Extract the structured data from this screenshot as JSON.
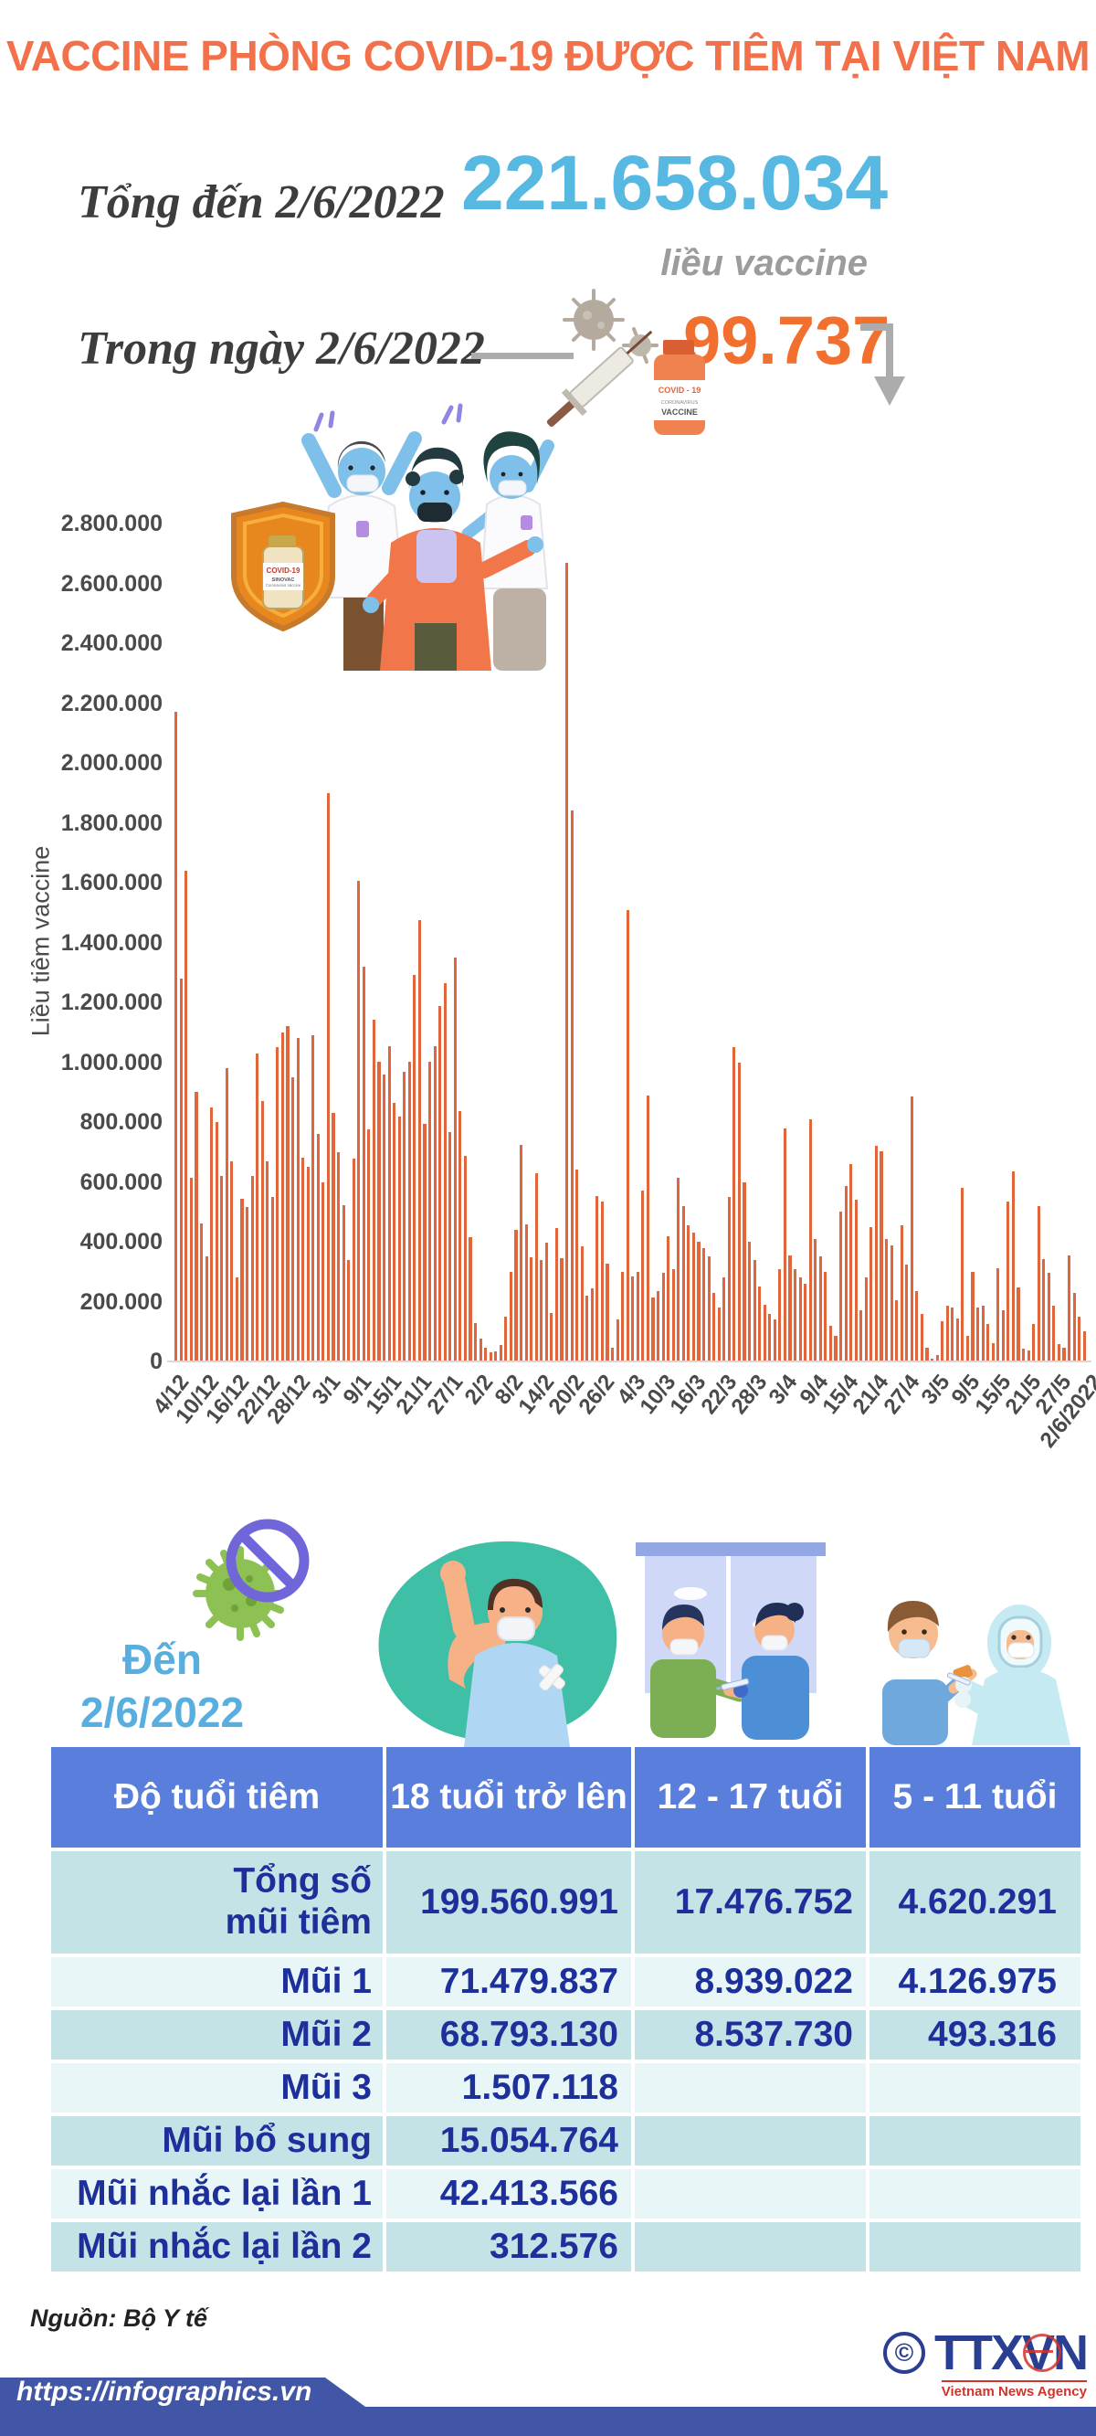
{
  "header": {
    "title": "VACCINE PHÒNG COVID-19 ĐƯỢC TIÊM TẠI VIỆT NAM"
  },
  "summary": {
    "total_label": "Tổng đến 2/6/2022",
    "total_value": "221.658.034",
    "total_unit": "liều vaccine",
    "daily_label": "Trong ngày 2/6/2022",
    "daily_value": "99.737"
  },
  "chart_data": {
    "type": "bar",
    "title": "",
    "ylabel": "Liều tiêm vaccine",
    "xlabel": "",
    "ylim": [
      0,
      2800000
    ],
    "grid": false,
    "legend": "none",
    "bar_color": "#E2663B",
    "y_ticks": [
      {
        "value": 0,
        "label": "0"
      },
      {
        "value": 200000,
        "label": "200.000"
      },
      {
        "value": 400000,
        "label": "400.000"
      },
      {
        "value": 600000,
        "label": "600.000"
      },
      {
        "value": 800000,
        "label": "800.000"
      },
      {
        "value": 1000000,
        "label": "1.000.000"
      },
      {
        "value": 1200000,
        "label": "1.200.000"
      },
      {
        "value": 1400000,
        "label": "1.400.000"
      },
      {
        "value": 1600000,
        "label": "1.600.000"
      },
      {
        "value": 1800000,
        "label": "1.800.000"
      },
      {
        "value": 2000000,
        "label": "2.000.000"
      },
      {
        "value": 2200000,
        "label": "2.200.000"
      },
      {
        "value": 2400000,
        "label": "2.400.000"
      },
      {
        "value": 2600000,
        "label": "2.600.000"
      },
      {
        "value": 2800000,
        "label": "2.800.000"
      }
    ],
    "x_ticks": [
      {
        "i": 0,
        "label": "4/12"
      },
      {
        "i": 6,
        "label": "10/12"
      },
      {
        "i": 12,
        "label": "16/12"
      },
      {
        "i": 18,
        "label": "22/12"
      },
      {
        "i": 24,
        "label": "28/12"
      },
      {
        "i": 30,
        "label": "3/1"
      },
      {
        "i": 36,
        "label": "9/1"
      },
      {
        "i": 42,
        "label": "15/1"
      },
      {
        "i": 48,
        "label": "21/1"
      },
      {
        "i": 54,
        "label": "27/1"
      },
      {
        "i": 60,
        "label": "2/2"
      },
      {
        "i": 66,
        "label": "8/2"
      },
      {
        "i": 72,
        "label": "14/2"
      },
      {
        "i": 78,
        "label": "20/2"
      },
      {
        "i": 84,
        "label": "26/2"
      },
      {
        "i": 90,
        "label": "4/3"
      },
      {
        "i": 96,
        "label": "10/3"
      },
      {
        "i": 102,
        "label": "16/3"
      },
      {
        "i": 108,
        "label": "22/3"
      },
      {
        "i": 114,
        "label": "28/3"
      },
      {
        "i": 120,
        "label": "3/4"
      },
      {
        "i": 126,
        "label": "9/4"
      },
      {
        "i": 132,
        "label": "15/4"
      },
      {
        "i": 138,
        "label": "21/4"
      },
      {
        "i": 144,
        "label": "27/4"
      },
      {
        "i": 150,
        "label": "3/5"
      },
      {
        "i": 156,
        "label": "9/5"
      },
      {
        "i": 162,
        "label": "15/5"
      },
      {
        "i": 168,
        "label": "21/5"
      },
      {
        "i": 174,
        "label": "27/5"
      },
      {
        "i": 180,
        "label": "2/6/2022"
      }
    ],
    "values": [
      2170000,
      1280000,
      1640000,
      613000,
      900000,
      460000,
      350000,
      850000,
      800000,
      620000,
      980000,
      670000,
      280000,
      545000,
      515000,
      620000,
      1030000,
      870000,
      670000,
      550000,
      1050000,
      1100000,
      1120000,
      950000,
      1080000,
      680000,
      650000,
      1090000,
      760000,
      600000,
      1900000,
      830000,
      700000,
      521000,
      338000,
      679000,
      1607000,
      1318000,
      775000,
      1143000,
      1003000,
      959000,
      1055000,
      863000,
      819000,
      968000,
      1003000,
      1291000,
      1475000,
      793000,
      1003000,
      1055000,
      1187000,
      1265000,
      767000,
      1349000,
      837000,
      688000,
      416000,
      128000,
      75000,
      45000,
      30000,
      33000,
      55000,
      150000,
      300000,
      440000,
      725000,
      457000,
      347000,
      630000,
      338000,
      397000,
      162000,
      445000,
      344000,
      2670000,
      1840000,
      641000,
      385000,
      219000,
      243000,
      552000,
      534000,
      326000,
      46000,
      142000,
      300000,
      1510000,
      285000,
      300000,
      570000,
      890000,
      215000,
      235000,
      295000,
      420000,
      310000,
      615000,
      520000,
      455000,
      430000,
      400000,
      380000,
      350000,
      230000,
      180000,
      280000,
      550000,
      1050000,
      1000000,
      600000,
      400000,
      340000,
      250000,
      190000,
      160000,
      140000,
      310000,
      780000,
      355000,
      310000,
      280000,
      260000,
      810000,
      410000,
      350000,
      300000,
      120000,
      85000,
      500000,
      585000,
      660000,
      540000,
      170000,
      281000,
      448000,
      720000,
      702000,
      410000,
      389000,
      206000,
      455000,
      324000,
      885000,
      235000,
      160000,
      46000,
      10000,
      21000,
      134000,
      185000,
      180000,
      144000,
      581000,
      87000,
      298000,
      180000,
      185000,
      125000,
      62000,
      312000,
      170000,
      535000,
      634000,
      249000,
      42000,
      36000,
      125000,
      520000,
      343000,
      296000,
      187000,
      57000,
      47000,
      353000,
      229000,
      151000,
      99737
    ]
  },
  "age_section": {
    "date_line1": "Đến",
    "date_line2": "2/6/2022",
    "table": {
      "columns": [
        "Độ tuổi tiêm",
        "18 tuổi trở lên",
        "12 - 17 tuổi",
        "5 - 11 tuổi"
      ],
      "rows": [
        {
          "label": "Tổng số mũi tiêm",
          "values": [
            "199.560.991",
            "17.476.752",
            "4.620.291"
          ]
        },
        {
          "label": "Mũi 1",
          "values": [
            "71.479.837",
            "8.939.022",
            "4.126.975"
          ]
        },
        {
          "label": "Mũi 2",
          "values": [
            "68.793.130",
            "8.537.730",
            "493.316"
          ]
        },
        {
          "label": "Mũi 3",
          "values": [
            "1.507.118",
            "",
            ""
          ]
        },
        {
          "label": "Mũi bổ sung",
          "values": [
            "15.054.764",
            "",
            ""
          ]
        },
        {
          "label": "Mũi nhắc lại lần 1",
          "values": [
            "42.413.566",
            "",
            ""
          ]
        },
        {
          "label": "Mũi nhắc lại lần 2",
          "values": [
            "312.576",
            "",
            ""
          ]
        }
      ]
    }
  },
  "illustrations": {
    "shield_vial_line1": "COVID-19",
    "shield_vial_line2": "SINOVAC",
    "shield_vial_line3": "Coronavirus Vaccine",
    "top_vial_line1": "COVID - 19",
    "top_vial_line2": "CORONAVIRUS",
    "top_vial_line3": "VACCINE"
  },
  "footer": {
    "source": "Nguồn: Bộ Y tế",
    "url": "https://infographics.vn",
    "copyright": "©",
    "agency": "TTXVN",
    "agency_sub": "Vietnam News Agency"
  },
  "colors": {
    "title_orange": "#F3714A",
    "accent_blue": "#57B8E1",
    "daily_orange": "#F2702F",
    "bar_orange": "#E2663B",
    "table_header_blue": "#5A7EDB",
    "row_teal": "#C4E3E6",
    "row_light": "#E9F6F7",
    "navy_text": "#1C2F9B",
    "footer_blue": "#4156A6",
    "section_blue": "#58AEDE",
    "axis_text": "#4A4A4A",
    "gray_text": "#9C9C9C"
  }
}
